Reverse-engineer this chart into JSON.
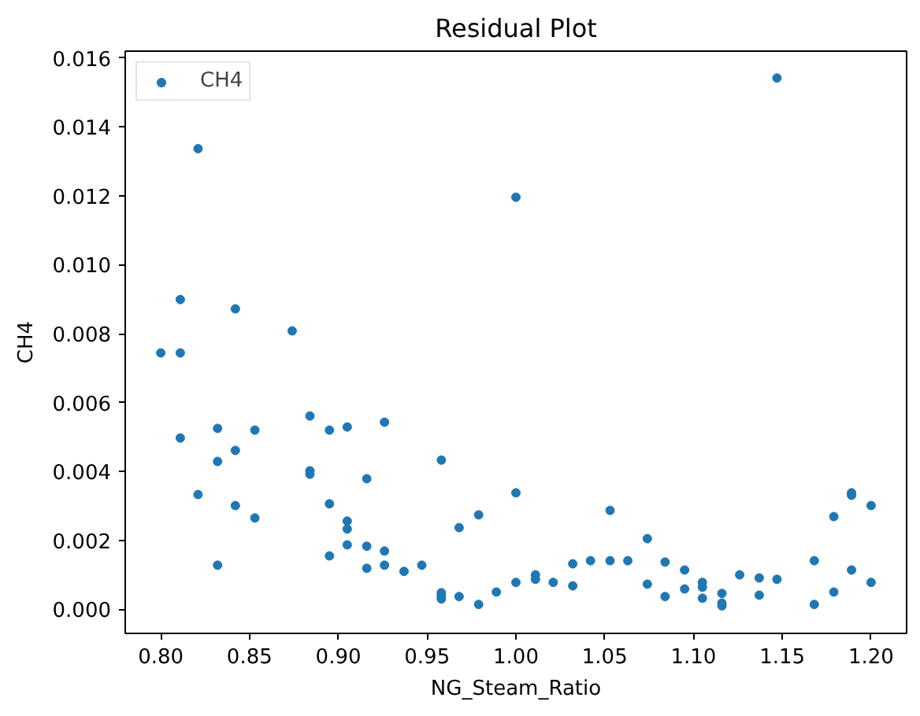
{
  "chart_data": {
    "type": "scatter",
    "title": "Residual Plot",
    "xlabel": "NG_Steam_Ratio",
    "ylabel": "CH4",
    "x": [
      0.8,
      0.811,
      0.811,
      0.811,
      0.821,
      0.821,
      0.832,
      0.832,
      0.832,
      0.842,
      0.842,
      0.842,
      0.853,
      0.853,
      0.874,
      0.884,
      0.884,
      0.884,
      0.895,
      0.895,
      0.895,
      0.905,
      0.905,
      0.905,
      0.905,
      0.916,
      0.916,
      0.916,
      0.926,
      0.926,
      0.926,
      0.937,
      0.947,
      0.958,
      0.958,
      0.958,
      0.958,
      0.968,
      0.968,
      0.979,
      0.979,
      0.989,
      1.0,
      1.0,
      1.0,
      1.011,
      1.011,
      1.021,
      1.032,
      1.032,
      1.042,
      1.053,
      1.053,
      1.063,
      1.074,
      1.074,
      1.084,
      1.084,
      1.095,
      1.095,
      1.105,
      1.105,
      1.105,
      1.116,
      1.116,
      1.116,
      1.126,
      1.137,
      1.137,
      1.147,
      1.147,
      1.168,
      1.168,
      1.179,
      1.179,
      1.189,
      1.189,
      1.189,
      1.2,
      1.2
    ],
    "series": [
      {
        "name": "CH4",
        "color": "#1f77b4",
        "values": [
          0.00744,
          0.00744,
          0.00899,
          0.00497,
          0.01337,
          0.00333,
          0.00525,
          0.00429,
          0.00128,
          0.00872,
          0.00461,
          0.00301,
          0.0052,
          0.00265,
          0.00808,
          0.00561,
          0.00402,
          0.00392,
          0.0052,
          0.00306,
          0.00155,
          0.00529,
          0.00256,
          0.00233,
          0.00187,
          0.00379,
          0.00183,
          0.00119,
          0.00543,
          0.00169,
          0.00128,
          0.0011,
          0.00128,
          0.00433,
          0.00048,
          0.00039,
          0.0003,
          0.00237,
          0.00037,
          0.00274,
          0.00014,
          0.0005,
          0.01196,
          0.00338,
          0.00078,
          0.001,
          0.00087,
          0.00078,
          0.00132,
          0.00068,
          0.00141,
          0.00287,
          0.00141,
          0.00141,
          0.00205,
          0.00073,
          0.00137,
          0.00037,
          0.00114,
          0.00059,
          0.00078,
          0.00064,
          0.00032,
          0.00046,
          0.00018,
          0.0001,
          0.001,
          0.00091,
          0.00041,
          0.01542,
          0.00087,
          0.00141,
          0.00014,
          0.00269,
          0.0005,
          0.00338,
          0.00331,
          0.00114,
          0.00301,
          0.00078
        ]
      }
    ],
    "xlim": [
      0.78,
      1.22
    ],
    "ylim": [
      -0.0007,
      0.0162
    ],
    "xticks": [
      {
        "value": 0.8,
        "label": "0.80"
      },
      {
        "value": 0.85,
        "label": "0.85"
      },
      {
        "value": 0.9,
        "label": "0.90"
      },
      {
        "value": 0.95,
        "label": "0.95"
      },
      {
        "value": 1.0,
        "label": "1.00"
      },
      {
        "value": 1.05,
        "label": "1.05"
      },
      {
        "value": 1.1,
        "label": "1.10"
      },
      {
        "value": 1.15,
        "label": "1.15"
      },
      {
        "value": 1.2,
        "label": "1.20"
      }
    ],
    "yticks": [
      {
        "value": 0,
        "label": "0.000"
      },
      {
        "value": 0.002,
        "label": "0.002"
      },
      {
        "value": 0.004,
        "label": "0.004"
      },
      {
        "value": 0.006,
        "label": "0.006"
      },
      {
        "value": 0.008,
        "label": "0.008"
      },
      {
        "value": 0.01,
        "label": "0.010"
      },
      {
        "value": 0.012,
        "label": "0.012"
      },
      {
        "value": 0.014,
        "label": "0.014"
      },
      {
        "value": 0.016,
        "label": "0.016"
      }
    ],
    "grid": false,
    "legend": "top left",
    "marker": "circle"
  }
}
